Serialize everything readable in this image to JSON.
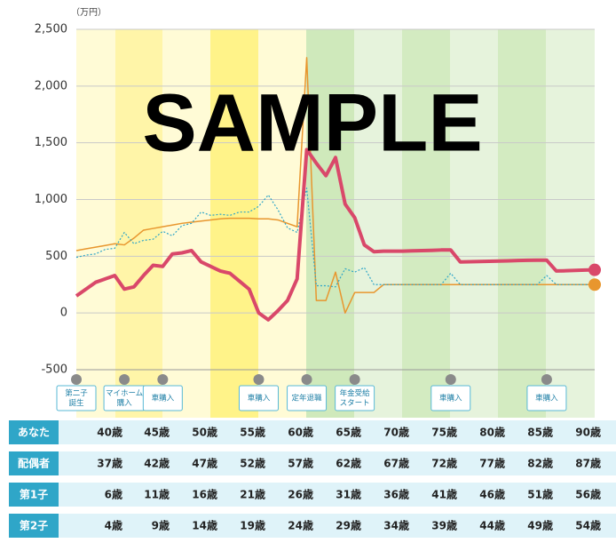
{
  "chart_data": {
    "type": "line",
    "unit_label": "（万円）",
    "watermark": "SAMPLE",
    "xlim": [
      36,
      90
    ],
    "ylim": [
      -500,
      2500
    ],
    "yticks": [
      -500,
      0,
      500,
      {
        "value": 1000,
        "label": "1,000"
      },
      {
        "value": 1500,
        "label": "1,500"
      },
      {
        "value": 2000,
        "label": "2,000"
      },
      {
        "value": 2500,
        "label": "2,500"
      }
    ],
    "grid": true,
    "x": [
      36,
      37,
      38,
      39,
      40,
      41,
      42,
      43,
      44,
      45,
      46,
      47,
      48,
      49,
      50,
      51,
      52,
      53,
      54,
      55,
      56,
      57,
      58,
      59,
      60,
      61,
      62,
      63,
      64,
      65,
      66,
      67,
      68,
      69,
      70,
      71,
      72,
      73,
      74,
      75,
      76,
      77,
      78,
      79,
      80,
      81,
      82,
      83,
      84,
      85,
      86,
      87,
      88,
      89,
      90
    ],
    "series": [
      {
        "color": "#e8962e",
        "width": 1.5,
        "dash": false,
        "end_marker": true,
        "values": [
          550,
          565,
          580,
          595,
          610,
          600,
          660,
          730,
          745,
          760,
          775,
          790,
          800,
          810,
          820,
          830,
          835,
          835,
          835,
          830,
          830,
          820,
          790,
          760,
          2250,
          110,
          110,
          360,
          0,
          180,
          180,
          180,
          250,
          250,
          250,
          250,
          250,
          250,
          250,
          250,
          250,
          250,
          250,
          250,
          250,
          250,
          250,
          250,
          250,
          250,
          250,
          250,
          250,
          250,
          250
        ]
      },
      {
        "color": "#2fa6c8",
        "width": 1.2,
        "dash": true,
        "end_marker": false,
        "values": [
          490,
          510,
          520,
          560,
          570,
          710,
          610,
          640,
          650,
          720,
          680,
          770,
          790,
          890,
          860,
          870,
          860,
          890,
          890,
          940,
          1040,
          910,
          750,
          710,
          1100,
          240,
          240,
          230,
          390,
          360,
          400,
          250,
          250,
          250,
          250,
          250,
          250,
          250,
          250,
          350,
          250,
          250,
          250,
          250,
          250,
          250,
          250,
          250,
          250,
          330,
          250,
          250,
          250,
          250,
          250
        ]
      },
      {
        "color": "#d9486a",
        "width": 4,
        "dash": false,
        "end_marker": true,
        "values": [
          150,
          210,
          270,
          300,
          330,
          210,
          230,
          330,
          420,
          410,
          520,
          530,
          550,
          450,
          410,
          370,
          350,
          280,
          210,
          0,
          -60,
          20,
          110,
          300,
          1440,
          1320,
          1210,
          1370,
          960,
          840,
          600,
          540,
          545,
          545,
          545,
          548,
          550,
          552,
          555,
          555,
          450,
          452,
          454,
          456,
          458,
          460,
          462,
          464,
          465,
          465,
          370,
          372,
          375,
          378,
          380
        ]
      }
    ],
    "events": [
      {
        "x": 36,
        "lines": [
          "第二子",
          "誕生"
        ]
      },
      {
        "x": 41,
        "lines": [
          "マイホーム",
          "購入"
        ]
      },
      {
        "x": 45,
        "lines": [
          "車購入"
        ]
      },
      {
        "x": 55,
        "lines": [
          "車購入"
        ]
      },
      {
        "x": 60,
        "lines": [
          "定年退職"
        ]
      },
      {
        "x": 65,
        "lines": [
          "年金受給",
          "スタート"
        ]
      },
      {
        "x": 75,
        "lines": [
          "車購入"
        ]
      },
      {
        "x": 85,
        "lines": [
          "車購入"
        ]
      }
    ]
  },
  "table": {
    "rows": [
      {
        "label": "あなた",
        "cells": [
          "40歳",
          "45歳",
          "50歳",
          "55歳",
          "60歳",
          "65歳",
          "70歳",
          "75歳",
          "80歳",
          "85歳",
          "90歳"
        ]
      },
      {
        "label": "配偶者",
        "cells": [
          "37歳",
          "42歳",
          "47歳",
          "52歳",
          "57歳",
          "62歳",
          "67歳",
          "72歳",
          "77歳",
          "82歳",
          "87歳"
        ]
      },
      {
        "label": "第1子",
        "cells": [
          "6歳",
          "11歳",
          "16歳",
          "21歳",
          "26歳",
          "31歳",
          "36歳",
          "41歳",
          "46歳",
          "51歳",
          "56歳"
        ]
      },
      {
        "label": "第2子",
        "cells": [
          "4歳",
          "9歳",
          "14歳",
          "19歳",
          "24歳",
          "29歳",
          "34歳",
          "39歳",
          "44歳",
          "49歳",
          "54歳"
        ]
      }
    ]
  }
}
